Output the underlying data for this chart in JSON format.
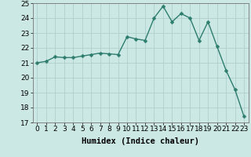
{
  "x": [
    0,
    1,
    2,
    3,
    4,
    5,
    6,
    7,
    8,
    9,
    10,
    11,
    12,
    13,
    14,
    15,
    16,
    17,
    18,
    19,
    20,
    21,
    22,
    23
  ],
  "y": [
    21.0,
    21.1,
    21.4,
    21.35,
    21.35,
    21.45,
    21.55,
    21.65,
    21.6,
    21.55,
    22.75,
    22.6,
    22.5,
    24.0,
    24.8,
    23.75,
    24.3,
    24.0,
    22.5,
    23.75,
    22.1,
    20.5,
    19.2,
    17.4
  ],
  "line_color": "#2d7d6e",
  "marker": "D",
  "marker_size": 2.5,
  "line_width": 1.0,
  "background_color": "#cce8e4",
  "grid_color": "#aecfcb",
  "grid_color_minor": "#c5e3df",
  "xlabel": "Humidex (Indice chaleur)",
  "xlabel_fontsize": 7.5,
  "tick_fontsize": 6.5,
  "ylim": [
    17,
    25
  ],
  "xlim": [
    -0.5,
    23.5
  ],
  "yticks": [
    17,
    18,
    19,
    20,
    21,
    22,
    23,
    24,
    25
  ],
  "xticks": [
    0,
    1,
    2,
    3,
    4,
    5,
    6,
    7,
    8,
    9,
    10,
    11,
    12,
    13,
    14,
    15,
    16,
    17,
    18,
    19,
    20,
    21,
    22,
    23
  ]
}
